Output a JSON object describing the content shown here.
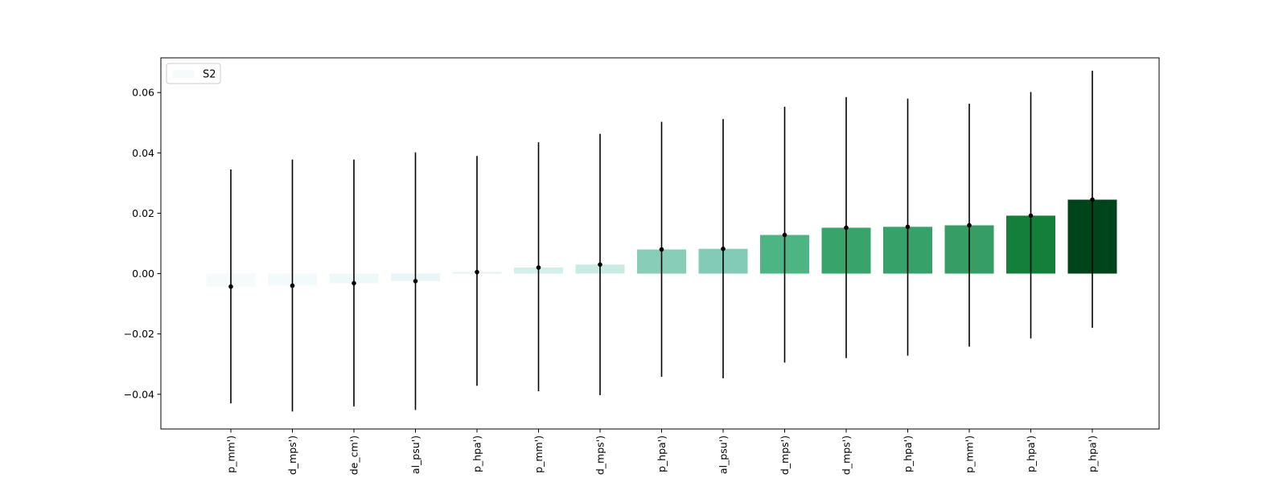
{
  "chart_data": {
    "type": "bar",
    "categories": [
      "p_mm')",
      "d_mps')",
      "de_cm')",
      "al_psu')",
      "p_hpa')",
      "p_mm')",
      "d_mps')",
      "p_hpa')",
      "al_psu')",
      "d_mps')",
      "d_mps')",
      "p_hpa')",
      "p_mm')",
      "p_hpa')",
      "p_hpa')"
    ],
    "series": [
      {
        "name": "S2",
        "values": [
          -0.0043,
          -0.004,
          -0.0032,
          -0.0025,
          0.0005,
          0.002,
          0.003,
          0.008,
          0.0082,
          0.0128,
          0.0152,
          0.0155,
          0.016,
          0.0192,
          0.0245
        ],
        "err_low": [
          -0.043,
          -0.0457,
          -0.044,
          -0.0452,
          -0.0372,
          -0.039,
          -0.0403,
          -0.0342,
          -0.0347,
          -0.0295,
          -0.028,
          -0.0272,
          -0.0242,
          -0.0215,
          -0.018
        ],
        "err_high": [
          0.0345,
          0.0378,
          0.0378,
          0.0402,
          0.039,
          0.0435,
          0.0463,
          0.0503,
          0.0512,
          0.0553,
          0.0585,
          0.058,
          0.0563,
          0.0602,
          0.0672
        ],
        "colors": [
          "#f5fbfb",
          "#f3fafb",
          "#eef8f8",
          "#e9f6f7",
          "#e3f4f3",
          "#d3efeb",
          "#c9ebe4",
          "#87cdb8",
          "#83cbb6",
          "#4db583",
          "#38a46a",
          "#36a168",
          "#369e64",
          "#147f3a",
          "#00441b"
        ]
      }
    ],
    "yticks": [
      "0.06",
      "0.04",
      "0.02",
      "0.00",
      "−0.02",
      "−0.04"
    ],
    "ylim": [
      -0.0515,
      0.0715
    ],
    "legend": "upper-left",
    "grid": false
  }
}
